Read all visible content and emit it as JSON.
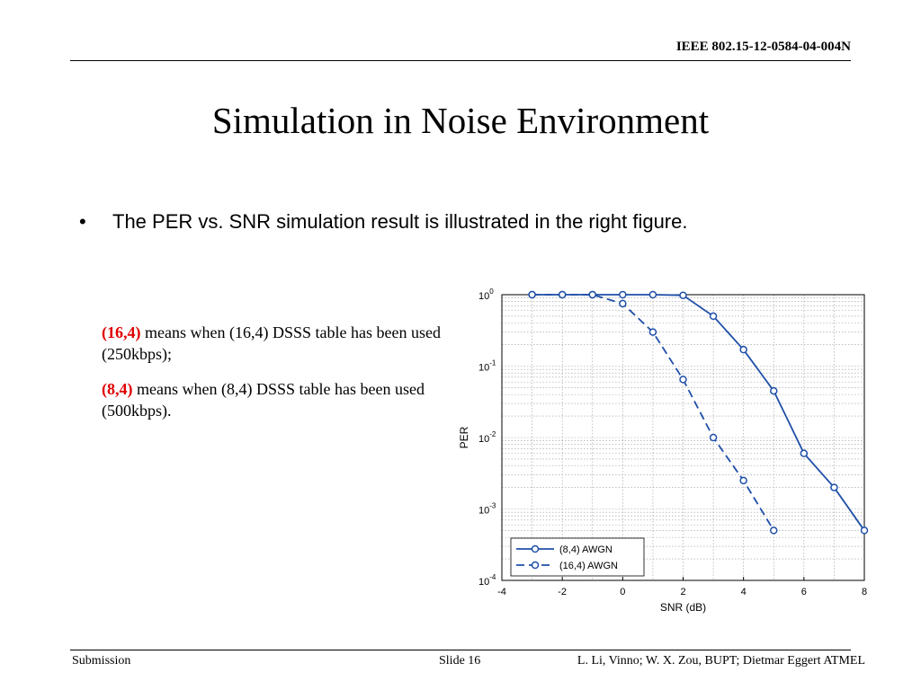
{
  "header": {
    "doc_id": "IEEE 802.15-12-0584-04-004N"
  },
  "slide": {
    "title": "Simulation in Noise Environment",
    "bullet": "The PER vs. SNR simulation result is illustrated in the right figure.",
    "notes": [
      {
        "key": "(16,4)",
        "text": " means when (16,4) DSSS table has been used (250kbps);"
      },
      {
        "key": "(8,4)",
        "text": " means when (8,4) DSSS table has been used (500kbps)."
      }
    ]
  },
  "footer": {
    "left": "Submission",
    "slide": "Slide 16",
    "authors": "L. Li, Vinno; W. X. Zou, BUPT; Dietmar Eggert ATMEL"
  },
  "colors": {
    "series": "#1f4fa8",
    "note_key": "#e00000"
  },
  "chart_data": {
    "type": "line",
    "xlabel": "SNR (dB)",
    "ylabel": "PER",
    "xlim": [
      -4,
      8
    ],
    "ylim": [
      0.0001,
      1
    ],
    "yscale": "log",
    "grid": true,
    "legend_position": "bottom-left",
    "xticks": [
      "-4",
      "-2",
      "0",
      "2",
      "4",
      "6",
      "8"
    ],
    "yticks": [
      {
        "base": "10",
        "exp": "0"
      },
      {
        "base": "10",
        "exp": "-1"
      },
      {
        "base": "10",
        "exp": "-2"
      },
      {
        "base": "10",
        "exp": "-3"
      },
      {
        "base": "10",
        "exp": "-4"
      }
    ],
    "series": [
      {
        "name": "(8,4) AWGN",
        "style": "solid",
        "x": [
          -3,
          -2,
          -1,
          0,
          1,
          2,
          3,
          4,
          5,
          6,
          7,
          8
        ],
        "y": [
          1,
          1,
          1,
          1,
          1,
          0.98,
          0.5,
          0.17,
          0.045,
          0.006,
          0.002,
          0.0005
        ]
      },
      {
        "name": "(16,4) AWGN",
        "style": "dashed",
        "x": [
          -3,
          -2,
          -1,
          0,
          1,
          2,
          3,
          4,
          5
        ],
        "y": [
          1,
          1,
          1,
          0.75,
          0.3,
          0.065,
          0.01,
          0.0025,
          0.0005
        ]
      }
    ]
  }
}
